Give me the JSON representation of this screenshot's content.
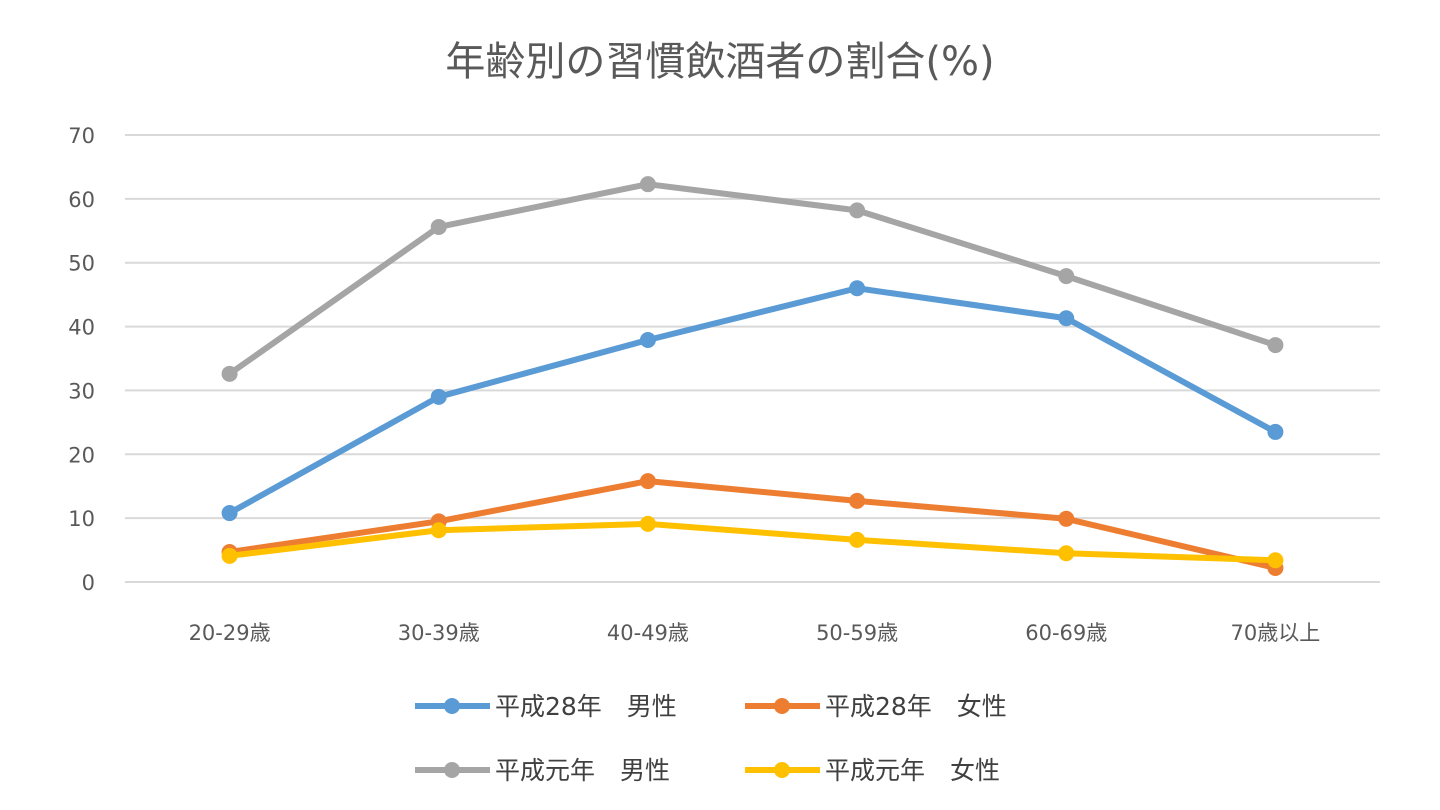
{
  "chart_data": {
    "type": "line",
    "title": "年齢別の習慣飲酒者の割合(%)",
    "xlabel": "",
    "ylabel": "",
    "categories": [
      "20-29歳",
      "30-39歳",
      "40-49歳",
      "50-59歳",
      "60-69歳",
      "70歳以上"
    ],
    "ylim": [
      0,
      70
    ],
    "yticks": [
      0,
      10,
      20,
      30,
      40,
      50,
      60,
      70
    ],
    "grid": true,
    "legend_position": "bottom",
    "series": [
      {
        "name": "平成28年　男性",
        "color": "#5B9BD5",
        "values": [
          10.8,
          29.0,
          37.9,
          46.0,
          41.3,
          23.5
        ]
      },
      {
        "name": "平成28年　女性",
        "color": "#ED7D31",
        "values": [
          4.7,
          9.5,
          15.8,
          12.7,
          9.9,
          2.2
        ]
      },
      {
        "name": "平成元年　男性",
        "color": "#A5A5A5",
        "values": [
          32.6,
          55.6,
          62.3,
          58.2,
          47.9,
          37.1
        ]
      },
      {
        "name": "平成元年　女性",
        "color": "#FFC000",
        "values": [
          4.1,
          8.1,
          9.1,
          6.6,
          4.5,
          3.4
        ]
      }
    ]
  }
}
